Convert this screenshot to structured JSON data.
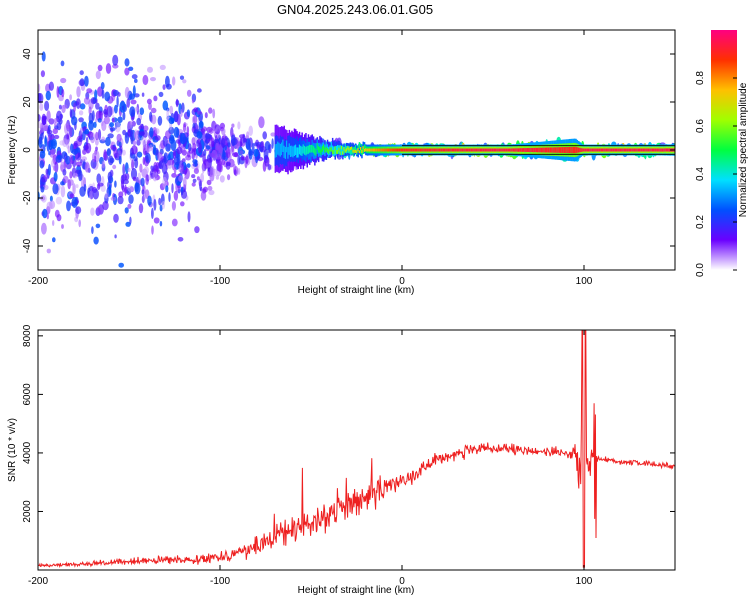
{
  "title": "GN04.2025.243.06.01.G05",
  "chart_data": [
    {
      "type": "heatmap",
      "name": "spectrogram",
      "xlabel": "Height of straight line (km)",
      "ylabel": "Frequency (Hz)",
      "xlim": [
        -200,
        150
      ],
      "ylim": [
        -50,
        50
      ],
      "xticks": [
        -200,
        -100,
        0,
        100
      ],
      "yticks": [
        -40,
        -20,
        0,
        20,
        40
      ],
      "colorbar": {
        "label": "Normalized spectral amplitude",
        "range": [
          0.0,
          1.0
        ],
        "ticks": [
          0.0,
          0.2,
          0.4,
          0.6,
          0.8
        ],
        "stops": [
          "#ffffff",
          "#6a00ff",
          "#0050ff",
          "#00e0ff",
          "#00ff40",
          "#a0ff00",
          "#ffc000",
          "#ff3000",
          "#ff0080"
        ]
      },
      "description_points": [
        {
          "x": -200,
          "spread_hz": 50,
          "peak": 0.25
        },
        {
          "x": -150,
          "spread_hz": 50,
          "peak": 0.3
        },
        {
          "x": -120,
          "spread_hz": 45,
          "peak": 0.3
        },
        {
          "x": -100,
          "spread_hz": 20,
          "peak": 0.25
        },
        {
          "x": -60,
          "spread_hz": 10,
          "peak": 0.35
        },
        {
          "x": -40,
          "spread_hz": 4,
          "peak": 0.55
        },
        {
          "x": -20,
          "spread_hz": 2,
          "peak": 0.75
        },
        {
          "x": 0,
          "spread_hz": 2,
          "peak": 0.9
        },
        {
          "x": 50,
          "spread_hz": 2,
          "peak": 0.95
        },
        {
          "x": 95,
          "spread_hz": 6,
          "peak": 0.9
        },
        {
          "x": 100,
          "spread_hz": 2,
          "peak": 0.95
        },
        {
          "x": 150,
          "spread_hz": 3,
          "peak": 0.95
        }
      ]
    },
    {
      "type": "line",
      "name": "snr",
      "xlabel": "Height of straight line (km)",
      "ylabel": "SNR (10 * v/v)",
      "xlim": [
        -200,
        150
      ],
      "ylim": [
        0,
        8200
      ],
      "xticks": [
        -200,
        -100,
        0,
        100
      ],
      "yticks": [
        2000,
        4000,
        6000,
        8000
      ],
      "color": "#ee2020",
      "x": [
        -200,
        -180,
        -160,
        -140,
        -120,
        -100,
        -90,
        -80,
        -70,
        -60,
        -50,
        -40,
        -30,
        -20,
        -10,
        0,
        10,
        20,
        30,
        40,
        50,
        60,
        70,
        80,
        90,
        95,
        98,
        100,
        102,
        105,
        110,
        120,
        130,
        140,
        150
      ],
      "y": [
        150,
        200,
        250,
        320,
        350,
        450,
        600,
        800,
        1100,
        1400,
        1600,
        1900,
        2200,
        2500,
        2800,
        3100,
        3400,
        3800,
        4000,
        4100,
        4150,
        4100,
        4050,
        4050,
        4000,
        4000,
        3500,
        3500,
        3800,
        3850,
        3800,
        3700,
        3650,
        3600,
        3550
      ],
      "noise": [
        80,
        100,
        120,
        150,
        180,
        250,
        300,
        450,
        500,
        600,
        650,
        700,
        750,
        700,
        550,
        450,
        350,
        300,
        280,
        260,
        250,
        240,
        230,
        230,
        260,
        400,
        2500,
        2500,
        1500,
        150,
        140,
        130,
        120,
        120,
        120
      ]
    }
  ]
}
